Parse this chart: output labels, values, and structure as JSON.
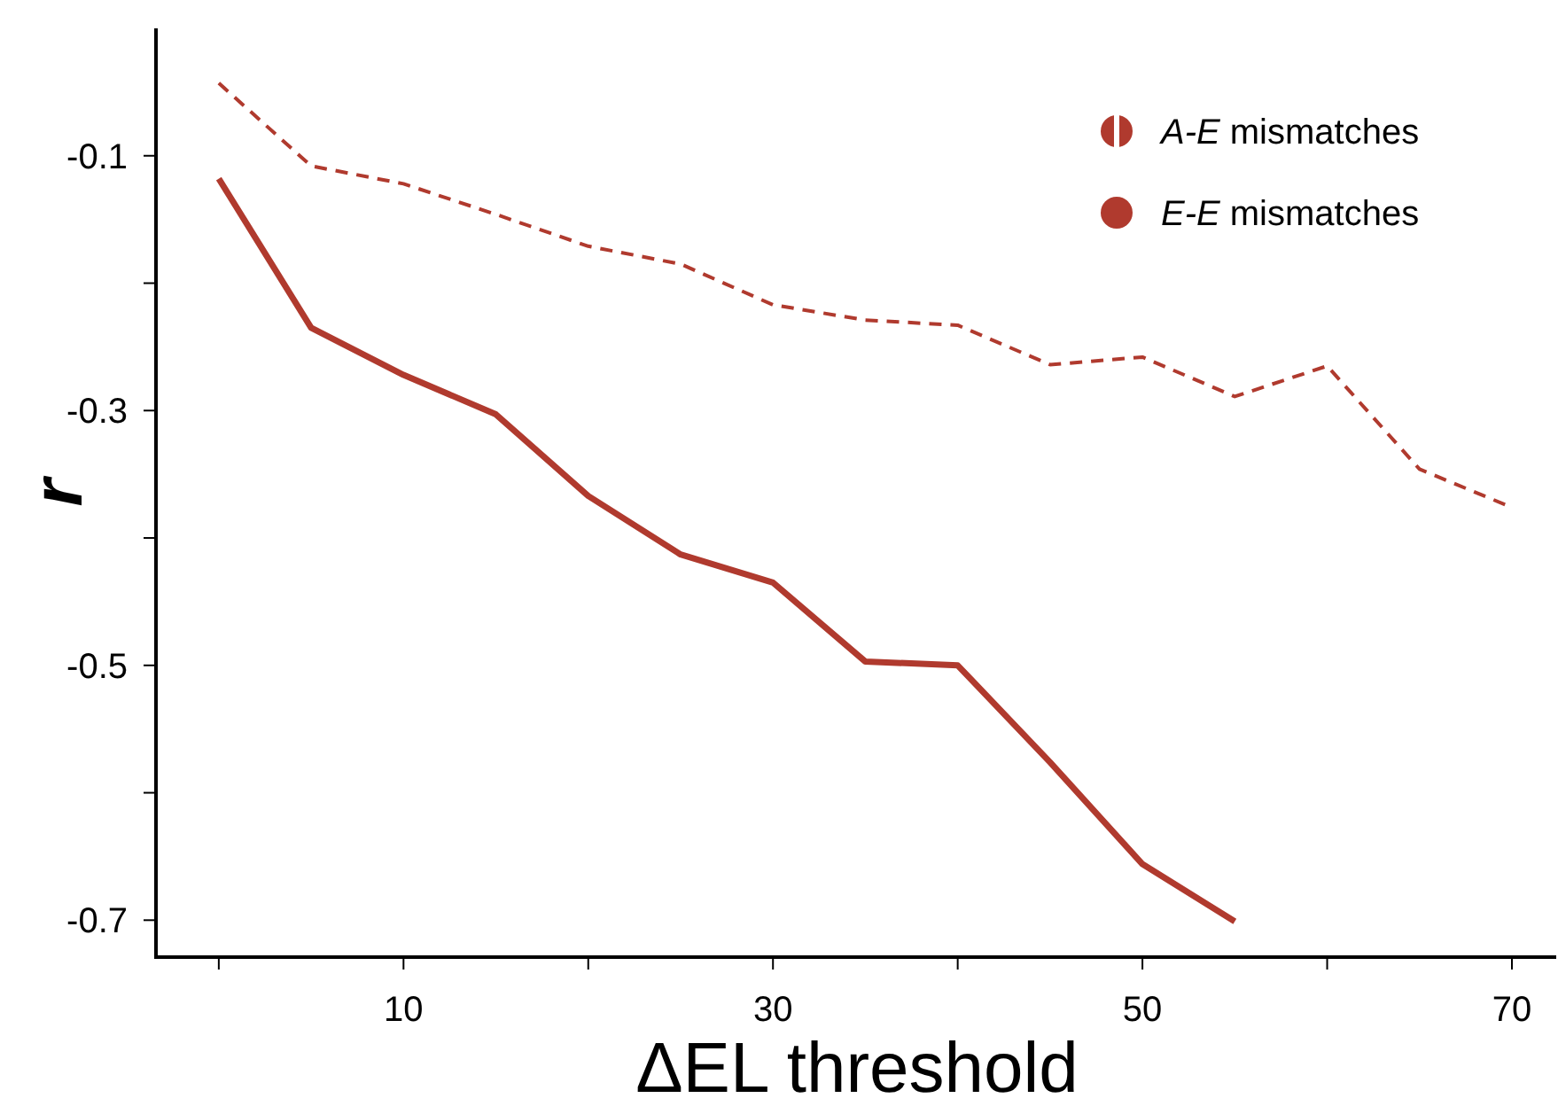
{
  "chart_data": {
    "type": "line",
    "xlabel": "ΔEL threshold",
    "ylabel": "r",
    "x": [
      0,
      5,
      10,
      15,
      20,
      25,
      30,
      35,
      40,
      45,
      50,
      55,
      60,
      65,
      70
    ],
    "series": [
      {
        "name": "A-E mismatches",
        "color": "#b03a2e",
        "line_style": "dashed",
        "values": [
          -0.043,
          -0.108,
          -0.122,
          -0.146,
          -0.171,
          -0.185,
          -0.217,
          -0.229,
          -0.233,
          -0.264,
          -0.258,
          -0.289,
          -0.265,
          -0.346,
          -0.376
        ]
      },
      {
        "name": "E-E mismatches",
        "color": "#b03a2e",
        "line_style": "solid",
        "values": [
          -0.118,
          -0.235,
          -0.272,
          -0.303,
          -0.367,
          -0.413,
          -0.435,
          -0.497,
          -0.5,
          -0.576,
          -0.656,
          -0.701,
          null,
          null,
          null
        ]
      }
    ],
    "xlim": [
      -3.4,
      72.4
    ],
    "ylim": [
      -0.729,
      0
    ],
    "xticks": [
      {
        "value": 0,
        "label": null
      },
      10,
      {
        "value": 20,
        "label": null
      },
      30,
      {
        "value": 40,
        "label": null
      },
      50,
      {
        "value": 60,
        "label": null
      },
      70
    ],
    "yticks": [
      -0.7,
      {
        "value": -0.6,
        "label": null
      },
      -0.5,
      {
        "value": -0.4,
        "label": null
      },
      -0.3,
      {
        "value": -0.2,
        "label": null
      },
      -0.1
    ],
    "grid": false,
    "legend": "top right",
    "marker": "none"
  }
}
